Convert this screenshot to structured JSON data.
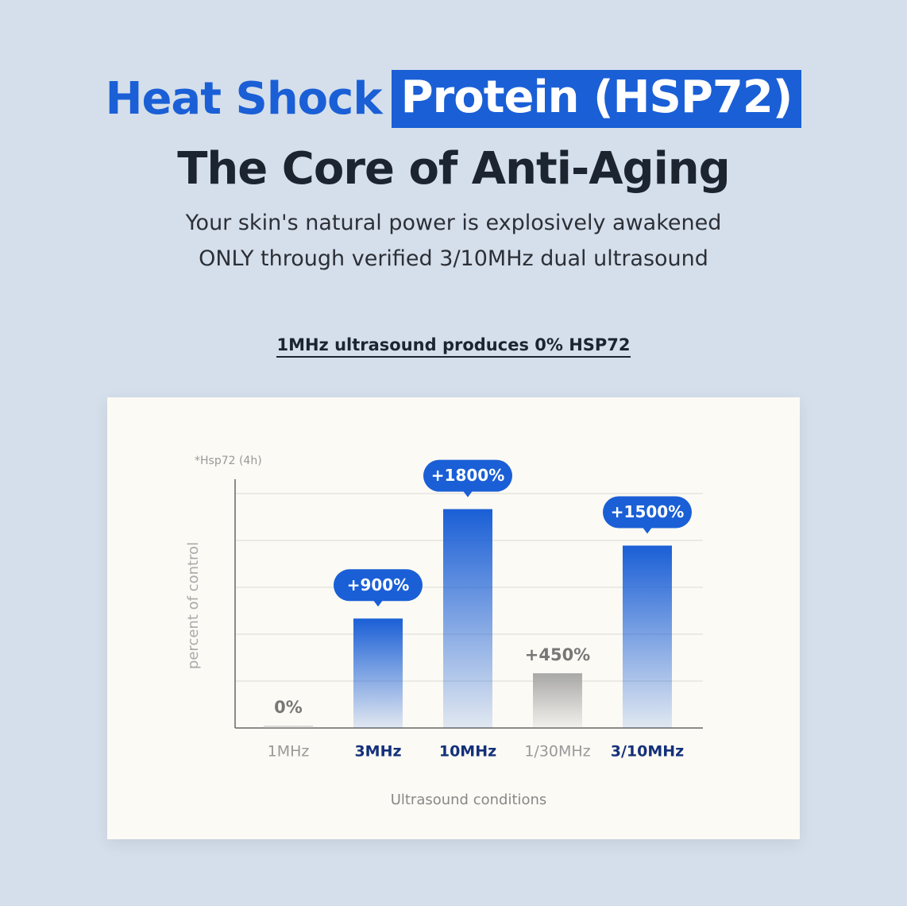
{
  "header": {
    "title_part1": "Heat Shock",
    "title_part2": "Protein (HSP72)",
    "title_line2": "The Core of Anti-Aging",
    "subtitle": [
      "Your skin's natural power is explosively awakened",
      "ONLY through verified 3/10MHz dual ultrasound"
    ],
    "heading": "1MHz ultrasound produces 0% HSP72"
  },
  "chart_data": {
    "type": "bar",
    "note": "*Hsp72 (4h)",
    "y_label": "percent of control",
    "x_label": "Ultrasound conditions",
    "categories": [
      "1MHz",
      "3MHz",
      "10MHz",
      "1/30MHz",
      "3/10MHz"
    ],
    "values": [
      0,
      900,
      1800,
      450,
      1500
    ],
    "value_labels": [
      "0%",
      "+900%",
      "+1800%",
      "+450%",
      "+1500%"
    ],
    "colors": [
      "#cfcfcf",
      "#1a5fd6",
      "#1a5fd6",
      "#a8a8a8",
      "#1a5fd6"
    ],
    "highlighted": [
      false,
      true,
      true,
      false,
      true
    ],
    "ylim": [
      0,
      2000
    ],
    "grid": true
  }
}
